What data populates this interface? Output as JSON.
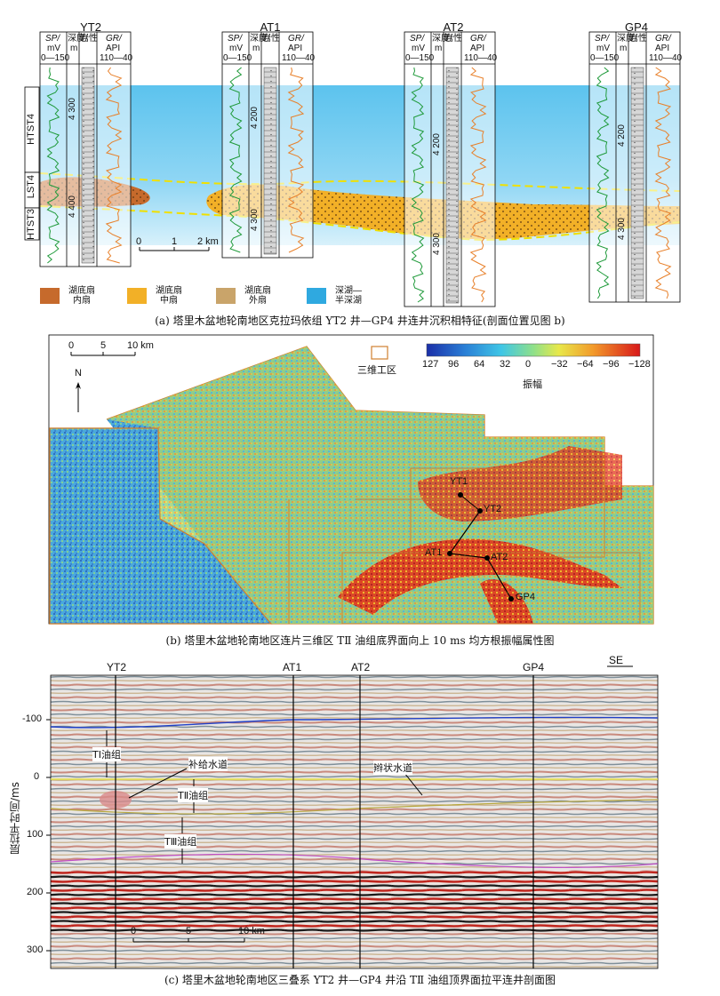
{
  "panel_a": {
    "caption": "(a) 塔里木盆地轮南地区克拉玛依组 YT2 井—GP4 井连井沉积相特征(剖面位置见图 b)",
    "wells": [
      {
        "name": "YT2",
        "depth_ticks": [
          "4 300",
          "4 400"
        ]
      },
      {
        "name": "AT1",
        "depth_ticks": [
          "4 200",
          "4 300"
        ]
      },
      {
        "name": "AT2",
        "depth_ticks": [
          "4 200",
          "4 300"
        ]
      },
      {
        "name": "GP4",
        "depth_ticks": [
          "4 200",
          "4 300"
        ]
      }
    ],
    "track_headers": {
      "sp": "SP/",
      "sp_unit": "mV",
      "sp_range": "0—150",
      "depth": "深度/",
      "depth_unit": "m",
      "litho": "岩性",
      "gr": "GR/",
      "gr_unit": "API",
      "gr_range": "110—40"
    },
    "systems_tracts": [
      "HTST4",
      "LST4",
      "HTST3"
    ],
    "scale": {
      "labels": [
        "0",
        "1",
        "2 km"
      ]
    },
    "legend": [
      {
        "label": "湖底扇\n内扇",
        "color": "#c66a2c"
      },
      {
        "label": "湖底扇\n中扇",
        "color": "#f2b027"
      },
      {
        "label": "湖底扇\n外扇",
        "color": "#c9a46a"
      },
      {
        "label": "深湖—\n半深湖",
        "color": "#2fa9e0"
      }
    ]
  },
  "panel_b": {
    "caption": "(b) 塔里木盆地轮南地区连片三维区 TⅡ 油组底界面向上 10 ms 均方根振幅属性图",
    "scale_labels": [
      "0",
      "5",
      "10 km"
    ],
    "north": "N",
    "survey_label": "三维工区",
    "colorbar_ticks": [
      "127",
      "96",
      "64",
      "32",
      "0",
      "−32",
      "−64",
      "−96",
      "−128"
    ],
    "colorbar_title": "振幅",
    "wells": [
      "YT1",
      "YT2",
      "AT1",
      "AT2",
      "GP4"
    ]
  },
  "panel_c": {
    "caption": "(c) 塔里木盆地轮南地区三叠系 YT2 井—GP4 井沿 TⅡ 油组顶界面拉平连井剖面图",
    "wells": [
      "YT2",
      "AT1",
      "AT2",
      "GP4"
    ],
    "direction": "SE",
    "y_axis_label": "层拉平时间/ms",
    "y_ticks": [
      "-100",
      "0",
      "100",
      "200",
      "300"
    ],
    "annotations": [
      "TⅠ油组",
      "补给水道",
      "TⅡ油组",
      "TⅢ油组",
      "辫状水道"
    ],
    "scale_labels": [
      "0",
      "5",
      "10 km"
    ]
  }
}
